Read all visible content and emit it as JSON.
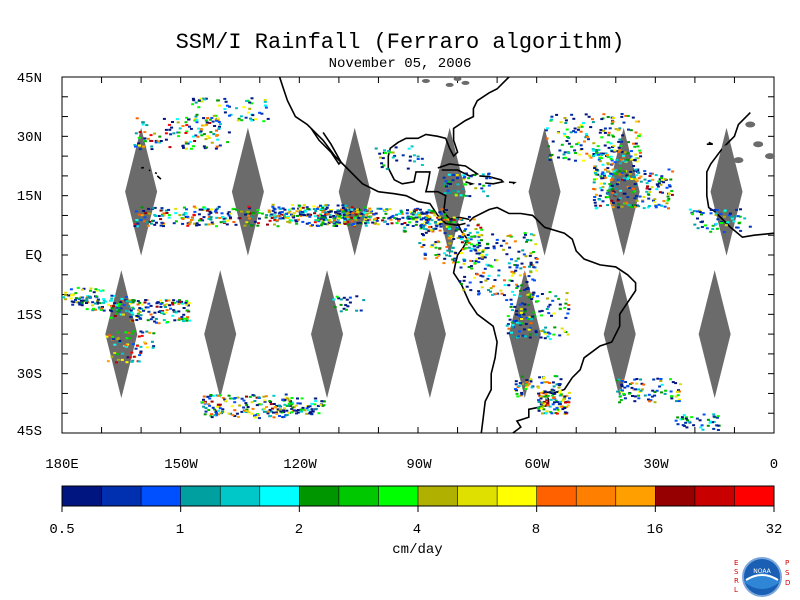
{
  "title": "SSM/I Rainfall (Ferraro algorithm)",
  "date": "November 05, 2006",
  "lat_labels": [
    "45N",
    "30N",
    "15N",
    "EQ",
    "15S",
    "30S",
    "45S"
  ],
  "lon_labels": [
    "180E",
    "150W",
    "120W",
    "90W",
    "60W",
    "30W",
    "0"
  ],
  "colorbar": {
    "colors": [
      "#001580",
      "#0030b0",
      "#0050ff",
      "#00a0a0",
      "#00c8c8",
      "#00ffff",
      "#009600",
      "#00c800",
      "#00ff00",
      "#b0b000",
      "#e0e000",
      "#ffff00",
      "#ff6000",
      "#ff8000",
      "#ffa000",
      "#960000",
      "#c80000",
      "#ff0000"
    ],
    "tick_labels": [
      "0.5",
      "1",
      "2",
      "4",
      "8",
      "16",
      "32"
    ],
    "units": "cm/day"
  },
  "logo": {
    "left_text": "ESRL",
    "right_text": "PSD",
    "center_text": "NOAA"
  }
}
